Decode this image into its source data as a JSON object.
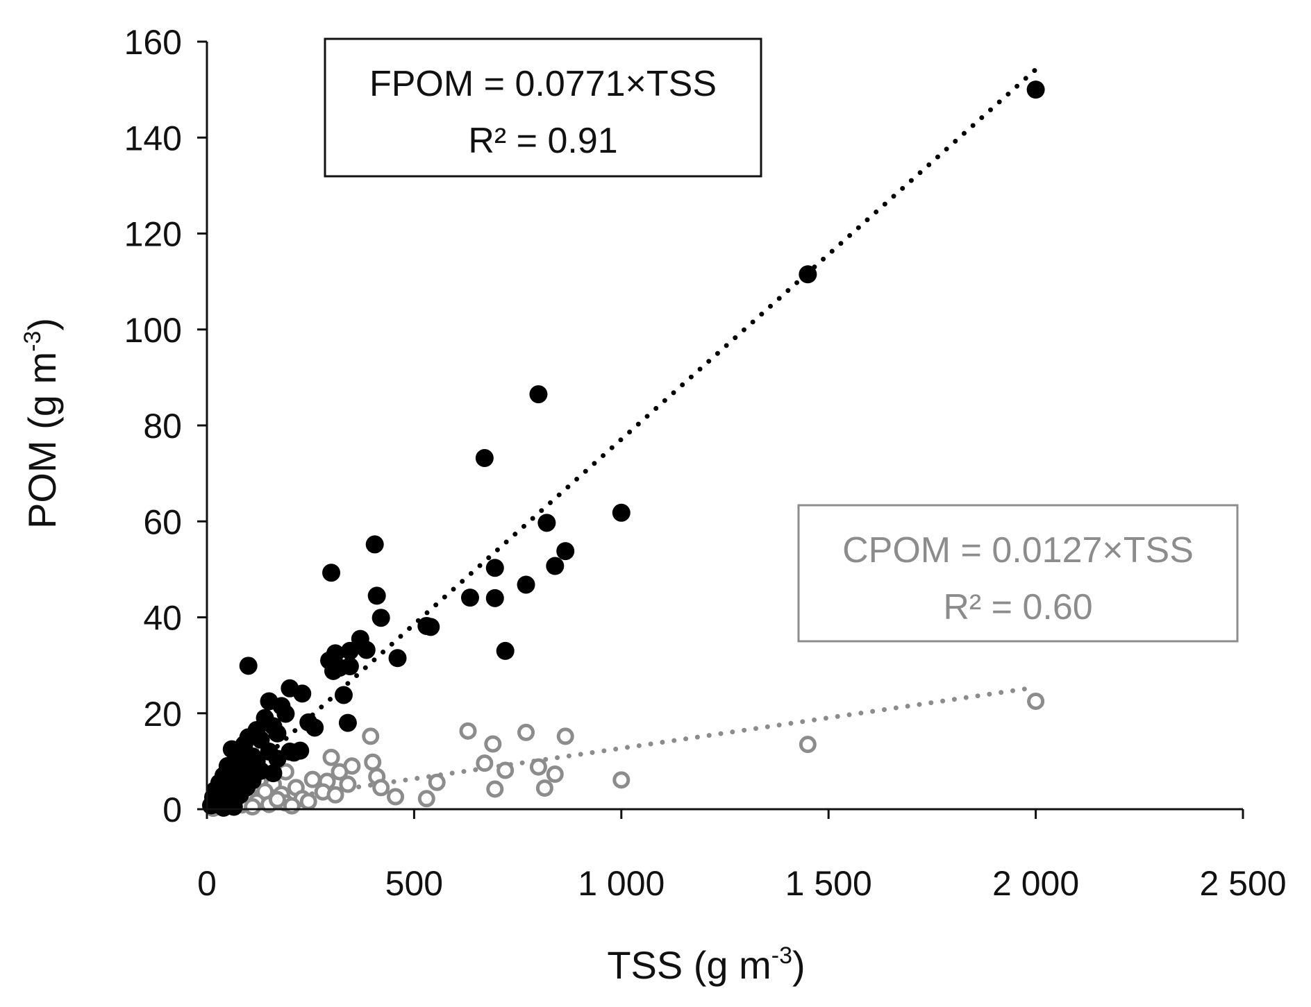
{
  "chart_data": {
    "type": "scatter",
    "title": "",
    "xlabel": "TSS (g m⁻³)",
    "xlabel_base": "TSS (g m",
    "xlabel_exp": "-3",
    "xlabel_close": ")",
    "ylabel": "POM (g m⁻³)",
    "ylabel_base": "POM (g m",
    "ylabel_exp": "-3",
    "ylabel_close": ")",
    "xlim": [
      0,
      2500
    ],
    "ylim": [
      0,
      160
    ],
    "xticks": [
      0,
      500,
      1000,
      1500,
      2000,
      2500
    ],
    "xtick_labels": [
      "0",
      "500",
      "1 000",
      "1 500",
      "2 000",
      "2 500"
    ],
    "yticks": [
      0,
      20,
      40,
      60,
      80,
      100,
      120,
      140,
      160
    ],
    "ytick_labels": [
      "0",
      "20",
      "40",
      "60",
      "80",
      "100",
      "120",
      "140",
      "160"
    ],
    "grid": false,
    "legend": "none",
    "series": [
      {
        "name": "FPOM",
        "marker": "filled-circle",
        "color": "#000000",
        "trend": {
          "slope": 0.0771,
          "x_range": [
            0,
            2000
          ]
        },
        "annotation": {
          "line1": "FPOM = 0.0771×TSS",
          "line2": "R² = 0.91",
          "color": "#111111"
        },
        "points": [
          [
            2000,
            150
          ],
          [
            1450,
            111.5
          ],
          [
            800,
            86.5
          ],
          [
            670,
            73.2
          ],
          [
            1000,
            61.8
          ],
          [
            820,
            59.7
          ],
          [
            865,
            53.8
          ],
          [
            840,
            50.7
          ],
          [
            405,
            55.2
          ],
          [
            300,
            49.3
          ],
          [
            695,
            50.3
          ],
          [
            635,
            44.1
          ],
          [
            695,
            44
          ],
          [
            770,
            46.8
          ],
          [
            410,
            44.5
          ],
          [
            420,
            39.9
          ],
          [
            720,
            33
          ],
          [
            540,
            38
          ],
          [
            530,
            38.2
          ],
          [
            370,
            35.5
          ],
          [
            385,
            33.2
          ],
          [
            460,
            31.5
          ],
          [
            345,
            33
          ],
          [
            310,
            32.5
          ],
          [
            295,
            31
          ],
          [
            320,
            29.5
          ],
          [
            345,
            29.8
          ],
          [
            305,
            28.8
          ],
          [
            330,
            23.8
          ],
          [
            340,
            18
          ],
          [
            100,
            29.9
          ],
          [
            200,
            25.2
          ],
          [
            230,
            24.1
          ],
          [
            150,
            22.5
          ],
          [
            180,
            21.5
          ],
          [
            190,
            19.9
          ],
          [
            140,
            19
          ],
          [
            245,
            18.1
          ],
          [
            260,
            17
          ],
          [
            160,
            17.3
          ],
          [
            120,
            16.5
          ],
          [
            170,
            15.8
          ],
          [
            100,
            15
          ],
          [
            130,
            14.5
          ],
          [
            90,
            13.5
          ],
          [
            60,
            12.5
          ],
          [
            80,
            11.5
          ],
          [
            110,
            11
          ],
          [
            150,
            12
          ],
          [
            200,
            12
          ],
          [
            210,
            11.8
          ],
          [
            225,
            12.2
          ],
          [
            170,
            10.5
          ],
          [
            120,
            10
          ],
          [
            70,
            9.5
          ],
          [
            50,
            9
          ],
          [
            90,
            8.5
          ],
          [
            130,
            8
          ],
          [
            160,
            7.5
          ],
          [
            40,
            7
          ],
          [
            75,
            6.5
          ],
          [
            110,
            6
          ],
          [
            30,
            5.5
          ],
          [
            60,
            5
          ],
          [
            95,
            4.5
          ],
          [
            20,
            4
          ],
          [
            45,
            3.5
          ],
          [
            80,
            3
          ],
          [
            15,
            2.5
          ],
          [
            35,
            2
          ],
          [
            55,
            1.5
          ],
          [
            25,
            1
          ],
          [
            65,
            0.5
          ],
          [
            10,
            0.8
          ],
          [
            40,
            0.3
          ]
        ]
      },
      {
        "name": "CPOM",
        "marker": "open-circle",
        "color": "#8c8c8c",
        "trend": {
          "slope": 0.0127,
          "x_range": [
            0,
            2000
          ]
        },
        "annotation": {
          "line1": "CPOM = 0.0127×TSS",
          "line2": "R² = 0.60",
          "color": "#8c8c8c"
        },
        "points": [
          [
            2000,
            22.5
          ],
          [
            1450,
            13.5
          ],
          [
            630,
            16.3
          ],
          [
            770,
            16
          ],
          [
            865,
            15.2
          ],
          [
            395,
            15.2
          ],
          [
            690,
            13.6
          ],
          [
            670,
            9.6
          ],
          [
            720,
            8.1
          ],
          [
            800,
            8.8
          ],
          [
            840,
            7.3
          ],
          [
            815,
            4.4
          ],
          [
            695,
            4.2
          ],
          [
            1000,
            6.1
          ],
          [
            555,
            5.6
          ],
          [
            530,
            2.2
          ],
          [
            455,
            2.6
          ],
          [
            300,
            10.8
          ],
          [
            400,
            9.8
          ],
          [
            350,
            9
          ],
          [
            320,
            7.8
          ],
          [
            410,
            6.8
          ],
          [
            290,
            5.8
          ],
          [
            340,
            5.2
          ],
          [
            420,
            4.5
          ],
          [
            105,
            12.5
          ],
          [
            190,
            7.8
          ],
          [
            255,
            6.2
          ],
          [
            215,
            4.5
          ],
          [
            160,
            5.2
          ],
          [
            125,
            6.1
          ],
          [
            90,
            6.7
          ],
          [
            140,
            3.7
          ],
          [
            180,
            3.1
          ],
          [
            230,
            2.2
          ],
          [
            245,
            1.6
          ],
          [
            280,
            3.6
          ],
          [
            310,
            3
          ],
          [
            100,
            3.3
          ],
          [
            70,
            4.3
          ],
          [
            50,
            3.6
          ],
          [
            30,
            2.3
          ],
          [
            20,
            1.7
          ],
          [
            60,
            1.2
          ],
          [
            85,
            0.9
          ],
          [
            120,
            1.5
          ],
          [
            150,
            1
          ],
          [
            190,
            1.3
          ],
          [
            205,
            0.7
          ],
          [
            10,
            0.6
          ],
          [
            40,
            0.4
          ],
          [
            110,
            0.5
          ],
          [
            170,
            2
          ],
          [
            75,
            2.5
          ],
          [
            15,
            0.2
          ]
        ]
      }
    ]
  }
}
